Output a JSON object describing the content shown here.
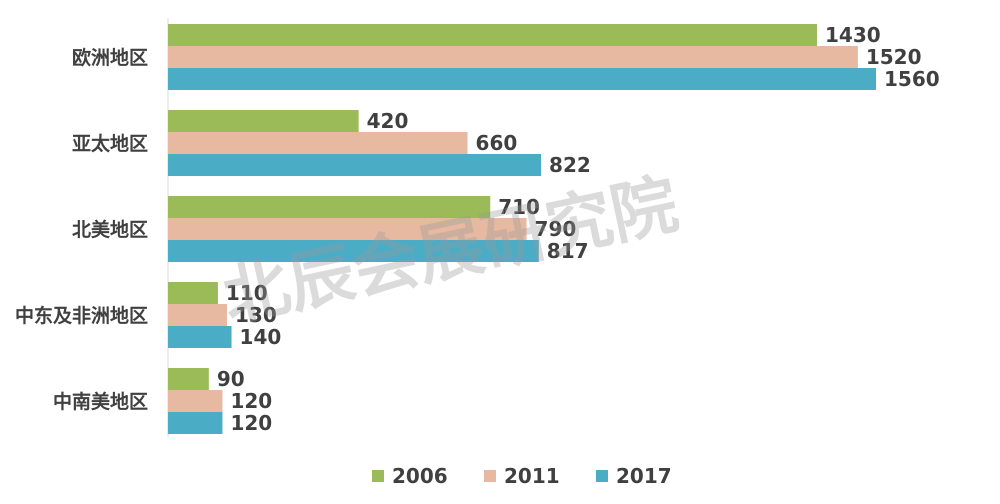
{
  "chart_data": {
    "type": "bar",
    "orientation": "horizontal",
    "categories": [
      "欧洲地区",
      "亚太地区",
      "北美地区",
      "中东及非洲地区",
      "中南美地区"
    ],
    "series": [
      {
        "name": "2006",
        "color": "#9bbb59",
        "values": [
          1430,
          420,
          710,
          110,
          90
        ]
      },
      {
        "name": "2011",
        "color": "#e6b9a0",
        "values": [
          1520,
          660,
          790,
          130,
          120
        ]
      },
      {
        "name": "2017",
        "color": "#4bacc6",
        "values": [
          1560,
          822,
          817,
          140,
          120
        ]
      }
    ],
    "title": "",
    "xlabel": "",
    "ylabel": "",
    "xlim": [
      0,
      1600
    ],
    "grid": false,
    "legend": "bottom",
    "watermark": "北辰会展研究院"
  }
}
